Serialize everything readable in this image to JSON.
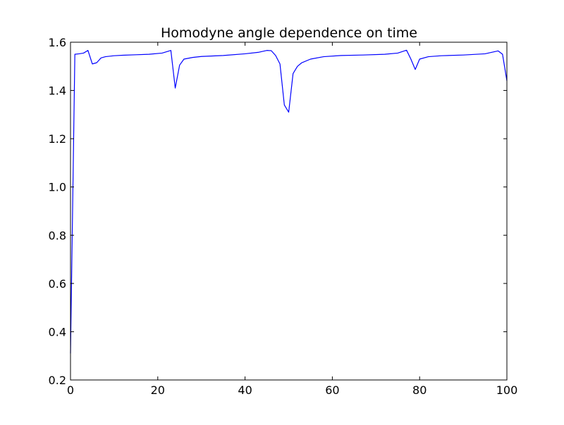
{
  "chart_data": {
    "type": "line",
    "title": "Homodyne angle dependence on time",
    "xlabel": "",
    "ylabel": "",
    "xlim": [
      0,
      100
    ],
    "ylim": [
      0.2,
      1.6
    ],
    "xticks": [
      0,
      20,
      40,
      60,
      80,
      100
    ],
    "yticks": [
      0.2,
      0.4,
      0.6,
      0.8,
      1.0,
      1.2,
      1.4,
      1.6
    ],
    "xtick_labels": [
      "0",
      "20",
      "40",
      "60",
      "80",
      "100"
    ],
    "ytick_labels": [
      "0.2",
      "0.4",
      "0.6",
      "0.8",
      "1.0",
      "1.2",
      "1.4",
      "1.6"
    ],
    "grid": false,
    "line_color": "#0000ff",
    "series": [
      {
        "x": [
          0,
          1,
          2,
          3,
          4,
          5,
          6,
          7,
          8,
          10,
          12,
          15,
          18,
          21,
          23,
          24,
          25,
          26,
          28,
          30,
          35,
          40,
          43,
          45,
          46,
          47,
          48,
          49,
          50,
          51,
          52,
          53,
          55,
          58,
          62,
          67,
          72,
          75,
          77,
          78,
          79,
          80,
          82,
          85,
          90,
          95,
          98,
          99,
          100
        ],
        "y": [
          0.31,
          1.55,
          1.552,
          1.555,
          1.566,
          1.51,
          1.515,
          1.535,
          1.54,
          1.544,
          1.546,
          1.548,
          1.55,
          1.555,
          1.566,
          1.41,
          1.505,
          1.53,
          1.537,
          1.541,
          1.545,
          1.552,
          1.558,
          1.566,
          1.565,
          1.545,
          1.51,
          1.34,
          1.31,
          1.47,
          1.5,
          1.515,
          1.53,
          1.54,
          1.545,
          1.547,
          1.55,
          1.555,
          1.567,
          1.53,
          1.487,
          1.53,
          1.54,
          1.544,
          1.547,
          1.552,
          1.564,
          1.55,
          1.44
        ]
      }
    ]
  }
}
